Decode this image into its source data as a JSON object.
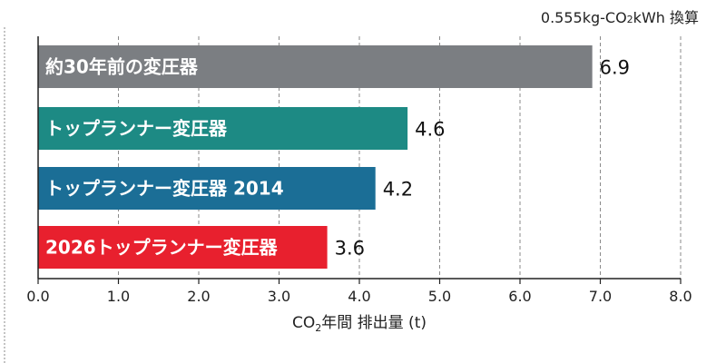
{
  "chart_data": {
    "type": "bar",
    "orientation": "horizontal",
    "categories": [
      "約30年前の変圧器",
      "トップランナー変圧器",
      "トップランナー変圧器 2014",
      "2026トップランナー変圧器"
    ],
    "values": [
      6.9,
      4.6,
      4.2,
      3.6
    ],
    "value_labels": [
      "6.9",
      "4.6",
      "4.2",
      "3.6"
    ],
    "colors": [
      "#7b7e82",
      "#1d8a84",
      "#1b6e96",
      "#e8202e"
    ],
    "xlim": [
      0,
      8
    ],
    "x_ticks": [
      0,
      1,
      2,
      3,
      4,
      5,
      6,
      7,
      8
    ],
    "x_tick_labels": [
      "0.0",
      "1.0",
      "2.0",
      "3.0",
      "4.0",
      "5.0",
      "6.0",
      "7.0",
      "8.0"
    ],
    "xlabel": {
      "before": "CO",
      "sub": "2",
      "after": "年間 排出量 (t)"
    },
    "unit_note": {
      "before": "0.555kg-CO",
      "sub": "2",
      "after": "kWh 換算"
    },
    "grid": "vertical dashed",
    "title": ""
  }
}
